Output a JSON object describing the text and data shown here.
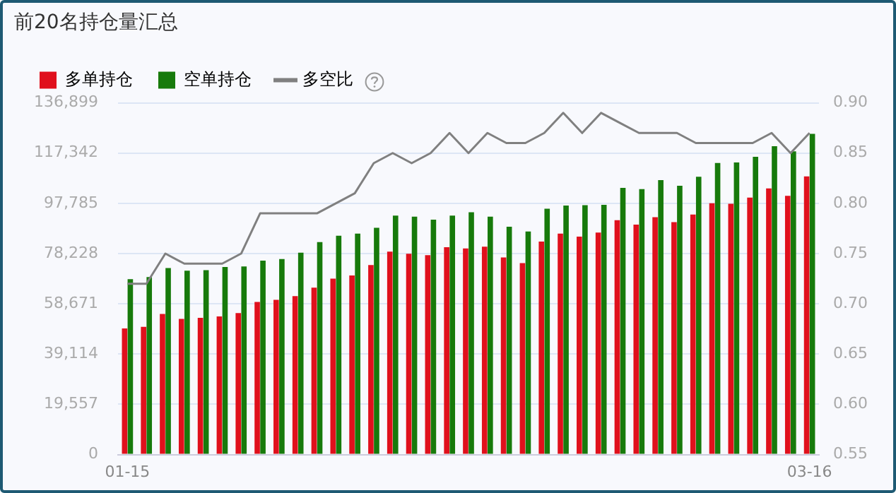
{
  "chart_data": {
    "type": "bar",
    "title": "前20名持仓量汇总",
    "categories": [
      "01-15",
      null,
      null,
      null,
      null,
      null,
      null,
      null,
      null,
      null,
      null,
      null,
      null,
      null,
      null,
      null,
      null,
      null,
      null,
      null,
      null,
      null,
      null,
      null,
      null,
      null,
      null,
      null,
      null,
      null,
      null,
      null,
      null,
      null,
      null,
      null,
      "03-16"
    ],
    "series": [
      {
        "name": "多单持仓",
        "color": "#e0101c",
        "values": [
          49100,
          49700,
          54700,
          52800,
          53200,
          53800,
          55100,
          59400,
          60200,
          61700,
          65000,
          68500,
          69700,
          73800,
          79000,
          78200,
          77600,
          80700,
          80200,
          80900,
          76700,
          74500,
          82900,
          86000,
          84800,
          86400,
          91200,
          89500,
          92400,
          90500,
          93400,
          97800,
          97600,
          100000,
          103600,
          100700,
          108300
        ]
      },
      {
        "name": "空单持仓",
        "color": "#177a0b",
        "values": [
          68300,
          69100,
          72600,
          71600,
          71800,
          73000,
          73200,
          75500,
          76100,
          78600,
          82700,
          85200,
          86000,
          88300,
          93000,
          92600,
          91400,
          93000,
          94300,
          92600,
          88700,
          86800,
          95700,
          96900,
          97100,
          97200,
          103800,
          103300,
          106800,
          104600,
          108100,
          113500,
          113700,
          115900,
          120000,
          118000,
          124800
        ]
      },
      {
        "name": "多空比",
        "type": "line",
        "axis": "y2",
        "color": "#808080",
        "values": [
          0.72,
          0.72,
          0.75,
          0.74,
          0.74,
          0.74,
          0.75,
          0.79,
          0.79,
          0.79,
          0.79,
          0.8,
          0.81,
          0.84,
          0.85,
          0.84,
          0.85,
          0.87,
          0.85,
          0.87,
          0.86,
          0.86,
          0.87,
          0.89,
          0.87,
          0.89,
          0.88,
          0.87,
          0.87,
          0.87,
          0.86,
          0.86,
          0.86,
          0.86,
          0.87,
          0.85,
          0.87
        ]
      }
    ],
    "ylim": [
      0,
      136899
    ],
    "yticks": [
      0,
      {
        "value": 19557,
        "label": "19,557"
      },
      {
        "value": 39114,
        "label": "39,114"
      },
      {
        "value": 58671,
        "label": "58,671"
      },
      {
        "value": 78228,
        "label": "78,228"
      },
      {
        "value": 97785,
        "label": "97,785"
      },
      {
        "value": 117342,
        "label": "117,342"
      },
      {
        "value": 136899,
        "label": "136,899"
      }
    ],
    "y2lim": [
      0.55,
      0.9
    ],
    "y2ticks": [
      {
        "value": 0.55,
        "label": "0.55"
      },
      {
        "value": 0.6,
        "label": "0.60"
      },
      {
        "value": 0.65,
        "label": "0.65"
      },
      {
        "value": 0.7,
        "label": "0.70"
      },
      {
        "value": 0.75,
        "label": "0.75"
      },
      {
        "value": 0.8,
        "label": "0.80"
      },
      {
        "value": 0.85,
        "label": "0.85"
      },
      {
        "value": 0.9,
        "label": "0.90"
      }
    ],
    "grid": "y",
    "legend": "top left",
    "marker": "none",
    "line_style": "solid"
  }
}
